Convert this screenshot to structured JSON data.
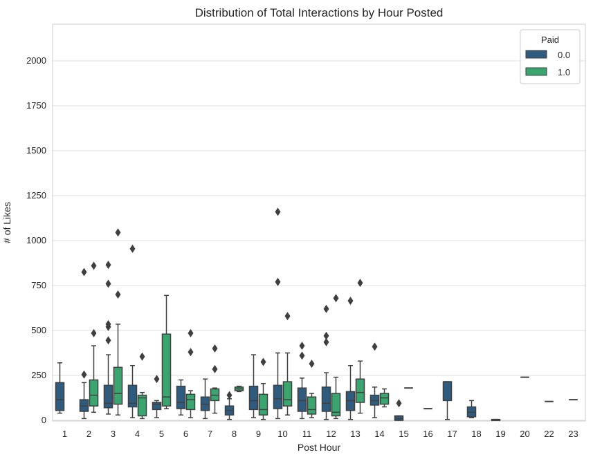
{
  "chart_data": {
    "type": "box",
    "title": "Distribution of Total Interactions by Hour Posted",
    "xlabel": "Post Hour",
    "ylabel": "# of Likes",
    "ylim": [
      0,
      2200
    ],
    "yticks": [
      0,
      250,
      500,
      750,
      1000,
      1250,
      1500,
      1750,
      2000
    ],
    "grid": true,
    "legend": {
      "title": "Paid",
      "placement": "top-right",
      "entries": [
        {
          "label": "0.0",
          "color": "#2f5b7f"
        },
        {
          "label": "1.0",
          "color": "#3aa56f"
        }
      ]
    },
    "categories": [
      "1",
      "2",
      "3",
      "4",
      "5",
      "6",
      "7",
      "8",
      "9",
      "10",
      "11",
      "12",
      "13",
      "14",
      "15",
      "16",
      "17",
      "18",
      "19",
      "20",
      "22",
      "23"
    ],
    "series": [
      {
        "name": "0.0",
        "color": "#2f5b7f",
        "boxes": [
          {
            "cat": "1",
            "min": 40,
            "q1": 55,
            "median": 115,
            "q3": 210,
            "max": 320,
            "outliers": []
          },
          {
            "cat": "2",
            "min": 10,
            "q1": 50,
            "median": 80,
            "q3": 115,
            "max": 210,
            "outliers": [
              255,
              825
            ]
          },
          {
            "cat": "3",
            "min": 35,
            "q1": 70,
            "median": 95,
            "q3": 195,
            "max": 365,
            "outliers": [
              445,
              520,
              535,
              760,
              865
            ]
          },
          {
            "cat": "4",
            "min": 15,
            "q1": 75,
            "median": 95,
            "q3": 195,
            "max": 305,
            "outliers": [
              955
            ]
          },
          {
            "cat": "5",
            "min": 15,
            "q1": 60,
            "median": 90,
            "q3": 100,
            "max": 110,
            "outliers": [
              230
            ]
          },
          {
            "cat": "6",
            "min": 30,
            "q1": 65,
            "median": 100,
            "q3": 190,
            "max": 225,
            "outliers": []
          },
          {
            "cat": "7",
            "min": 10,
            "q1": 55,
            "median": 90,
            "q3": 130,
            "max": 230,
            "outliers": []
          },
          {
            "cat": "8",
            "min": 5,
            "q1": 30,
            "median": 55,
            "q3": 80,
            "max": 120,
            "outliers": [
              140
            ]
          },
          {
            "cat": "9",
            "min": 15,
            "q1": 60,
            "median": 110,
            "q3": 190,
            "max": 365,
            "outliers": []
          },
          {
            "cat": "10",
            "min": 10,
            "q1": 65,
            "median": 120,
            "q3": 195,
            "max": 375,
            "outliers": [
              770,
              1160
            ]
          },
          {
            "cat": "11",
            "min": 10,
            "q1": 50,
            "median": 110,
            "q3": 180,
            "max": 235,
            "outliers": [
              360,
              415
            ]
          },
          {
            "cat": "12",
            "min": 5,
            "q1": 50,
            "median": 95,
            "q3": 185,
            "max": 265,
            "outliers": [
              435,
              470,
              620
            ]
          },
          {
            "cat": "13",
            "min": 5,
            "q1": 55,
            "median": 110,
            "q3": 160,
            "max": 305,
            "outliers": [
              665
            ]
          },
          {
            "cat": "14",
            "min": 15,
            "q1": 85,
            "median": 110,
            "q3": 140,
            "max": 185,
            "outliers": [
              410
            ]
          },
          {
            "cat": "15",
            "min": 0,
            "q1": 0,
            "median": 10,
            "q3": 25,
            "max": 25,
            "outliers": [
              95
            ]
          },
          {
            "cat": "17",
            "min": 5,
            "q1": 110,
            "median": 215,
            "q3": 215,
            "max": 215,
            "outliers": []
          },
          {
            "cat": "18",
            "min": 15,
            "q1": 20,
            "median": 45,
            "q3": 75,
            "max": 110,
            "outliers": []
          },
          {
            "cat": "19",
            "min": 5,
            "q1": 5,
            "median": 5,
            "q3": 5,
            "max": 5,
            "outliers": []
          }
        ]
      },
      {
        "name": "1.0",
        "color": "#3aa56f",
        "boxes": [
          {
            "cat": "2",
            "min": 45,
            "q1": 80,
            "median": 140,
            "q3": 225,
            "max": 415,
            "outliers": [
              485,
              860
            ]
          },
          {
            "cat": "3",
            "min": 30,
            "q1": 90,
            "median": 150,
            "q3": 295,
            "max": 535,
            "outliers": [
              700,
              1045
            ]
          },
          {
            "cat": "4",
            "min": 10,
            "q1": 25,
            "median": 125,
            "q3": 140,
            "max": 155,
            "outliers": [
              355
            ]
          },
          {
            "cat": "5",
            "min": 65,
            "q1": 80,
            "median": 130,
            "q3": 480,
            "max": 695,
            "outliers": []
          },
          {
            "cat": "6",
            "min": 15,
            "q1": 60,
            "median": 115,
            "q3": 145,
            "max": 165,
            "outliers": [
              380,
              485
            ]
          },
          {
            "cat": "7",
            "min": 40,
            "q1": 110,
            "median": 140,
            "q3": 175,
            "max": 180,
            "outliers": [
              285,
              400
            ]
          },
          {
            "cat": "8",
            "min": 160,
            "q1": 165,
            "median": 175,
            "q3": 185,
            "max": 190,
            "outliers": []
          },
          {
            "cat": "9",
            "min": 5,
            "q1": 30,
            "median": 60,
            "q3": 145,
            "max": 205,
            "outliers": [
              325
            ]
          },
          {
            "cat": "10",
            "min": 30,
            "q1": 80,
            "median": 115,
            "q3": 215,
            "max": 375,
            "outliers": [
              580
            ]
          },
          {
            "cat": "11",
            "min": 15,
            "q1": 35,
            "median": 60,
            "q3": 130,
            "max": 150,
            "outliers": [
              315
            ]
          },
          {
            "cat": "12",
            "min": 10,
            "q1": 25,
            "median": 45,
            "q3": 150,
            "max": 240,
            "outliers": [
              680
            ]
          },
          {
            "cat": "13",
            "min": 40,
            "q1": 100,
            "median": 155,
            "q3": 230,
            "max": 330,
            "outliers": [
              765
            ]
          },
          {
            "cat": "14",
            "min": 75,
            "q1": 90,
            "median": 125,
            "q3": 150,
            "max": 175,
            "outliers": []
          }
        ]
      }
    ],
    "single_lines": [
      {
        "cat": "16",
        "value": 65,
        "color": "#2f5b7f"
      },
      {
        "cat": "15",
        "value": 180,
        "color": "#3aa56f",
        "offset": "right"
      },
      {
        "cat": "20",
        "value": 240,
        "color": "#2f5b7f"
      },
      {
        "cat": "22",
        "value": 105,
        "color": "#2f5b7f"
      },
      {
        "cat": "23",
        "value": 115,
        "color": "#2f5b7f"
      }
    ]
  }
}
